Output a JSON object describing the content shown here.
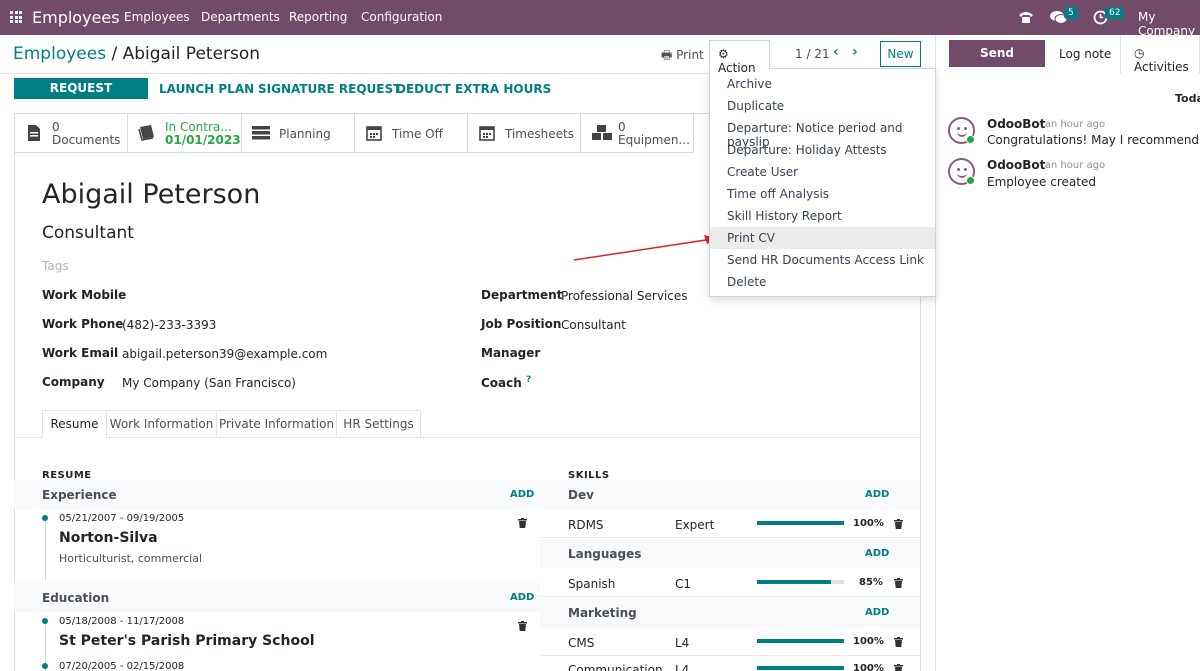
{
  "navbar": {
    "brand": "Employees",
    "menu": [
      "Employees",
      "Departments",
      "Reporting",
      "Configuration"
    ],
    "messages_count": "5",
    "activities_count": "62",
    "company": "My Company"
  },
  "breadcrumb": {
    "parent": "Employees",
    "separator": "/",
    "current": "Abigail Peterson"
  },
  "control": {
    "print_label": "Print",
    "action_label": "Action",
    "pager": "1 / 21",
    "new_label": "New"
  },
  "header_buttons": {
    "request_appraisal": "REQUEST APPRAISAL",
    "launch_plan": "LAUNCH PLAN",
    "signature_request": "SIGNATURE REQUEST",
    "deduct_extra_hours": "DEDUCT EXTRA HOURS"
  },
  "smart_buttons": {
    "documents_count": "0",
    "documents_label": "Documents",
    "contract_status": "In Contra...",
    "contract_date": "01/01/2023",
    "planning": "Planning",
    "time_off": "Time Off",
    "timesheets": "Timesheets",
    "equipment_count": "0",
    "equipment_label": "Equipmen..."
  },
  "employee": {
    "name": "Abigail Peterson",
    "job_title": "Consultant",
    "tags_placeholder": "Tags"
  },
  "fields": {
    "work_mobile_label": "Work Mobile",
    "work_phone_label": "Work Phone",
    "work_phone": "(482)-233-3393",
    "work_email_label": "Work Email",
    "work_email": "abigail.peterson39@example.com",
    "company_label": "Company",
    "company": "My Company (San Francisco)",
    "department_label": "Department",
    "department": "Professional Services",
    "job_position_label": "Job Position",
    "job_position": "Consultant",
    "manager_label": "Manager",
    "coach_label": "Coach",
    "coach_help": "?"
  },
  "tabs": [
    "Resume",
    "Work Information",
    "Private Information",
    "HR Settings"
  ],
  "resume": {
    "title": "RESUME",
    "add_label": "ADD",
    "experience_label": "Experience",
    "experience": [
      {
        "dates": "05/21/2007 - 09/19/2005",
        "title": "Norton-Silva",
        "desc": "Horticulturist, commercial"
      }
    ],
    "education_label": "Education",
    "education": [
      {
        "dates": "05/18/2008 - 11/17/2008",
        "title": "St Peter's Parish Primary School"
      },
      {
        "dates": "07/20/2005 - 02/15/2008"
      }
    ]
  },
  "skills": {
    "title": "SKILLS",
    "add_label": "ADD",
    "groups": [
      {
        "name": "Dev",
        "rows": [
          {
            "skill": "RDMS",
            "level": "Expert",
            "progress": 100,
            "pct": "100%"
          }
        ]
      },
      {
        "name": "Languages",
        "rows": [
          {
            "skill": "Spanish",
            "level": "C1",
            "progress": 85,
            "pct": "85%"
          }
        ]
      },
      {
        "name": "Marketing",
        "rows": [
          {
            "skill": "CMS",
            "level": "L4",
            "progress": 100,
            "pct": "100%"
          },
          {
            "skill": "Communication",
            "level": "L4",
            "progress": 100,
            "pct": "100%"
          }
        ]
      }
    ]
  },
  "action_menu": [
    "Archive",
    "Duplicate",
    "Departure: Notice period and payslip",
    "Departure: Holiday Attests",
    "Create User",
    "Time off Analysis",
    "Skill History Report",
    "Print CV",
    "Send HR Documents Access Link",
    "Delete"
  ],
  "chatter": {
    "send_message": "Send message",
    "log_note": "Log note",
    "activities": "Activities",
    "today": "Toda",
    "messages": [
      {
        "author": "OdooBot",
        "time": "- an hour ago",
        "body": "Congratulations! May I recommend you t"
      },
      {
        "author": "OdooBot",
        "time": "- an hour ago",
        "body": "Employee created"
      }
    ]
  },
  "colors": {
    "brand": "#714b67",
    "accent": "#017e84",
    "annotation_arrow": "#e02020"
  }
}
